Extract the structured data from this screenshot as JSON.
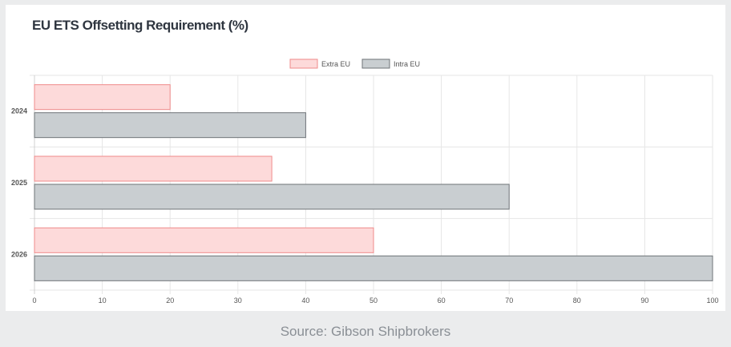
{
  "chart_data": {
    "type": "bar",
    "orientation": "horizontal",
    "title": "EU ETS Offsetting Requirement (%)",
    "categories": [
      "2024",
      "2025",
      "2026"
    ],
    "series": [
      {
        "name": "Extra EU",
        "values": [
          20,
          35,
          50
        ],
        "fill": "#fddada",
        "stroke": "#ef8b8b"
      },
      {
        "name": "Intra EU",
        "values": [
          40,
          70,
          100
        ],
        "fill": "#c9ced1",
        "stroke": "#6f7478"
      }
    ],
    "xlim": [
      0,
      100
    ],
    "xticks": [
      "0",
      "10",
      "20",
      "30",
      "40",
      "50",
      "60",
      "70",
      "80",
      "90",
      "100"
    ],
    "legend_position": "top-center",
    "grid": true
  },
  "caption": "Source: Gibson Shipbrokers"
}
